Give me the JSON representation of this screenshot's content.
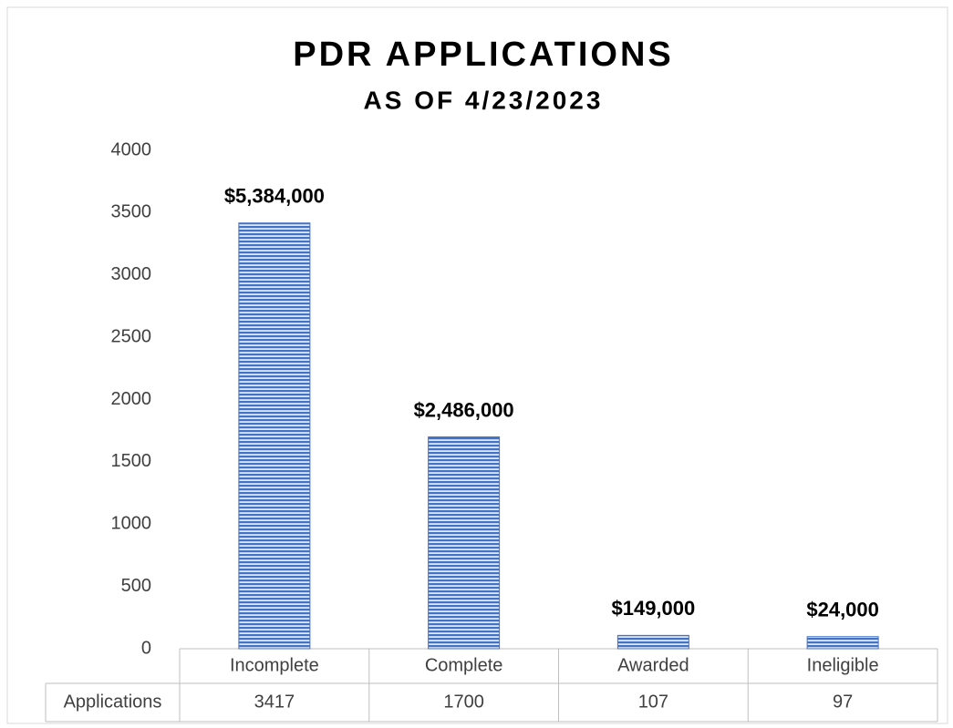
{
  "chart_data": {
    "type": "bar",
    "title": "PDR APPLICATIONS",
    "subtitle": "AS OF 4/23/2023",
    "categories": [
      "Incomplete",
      "Complete",
      "Awarded",
      "Ineligible"
    ],
    "series": [
      {
        "name": "Applications",
        "color": "#4472c4",
        "values": [
          3417,
          1700,
          107,
          97
        ]
      }
    ],
    "annotations": [
      "$5,384,000",
      "$2,486,000",
      "$149,000",
      "$24,000"
    ],
    "ylim": [
      0,
      4000
    ],
    "yticks": [
      0,
      500,
      1000,
      1500,
      2000,
      2500,
      3000,
      3500,
      4000
    ],
    "grid": false
  }
}
